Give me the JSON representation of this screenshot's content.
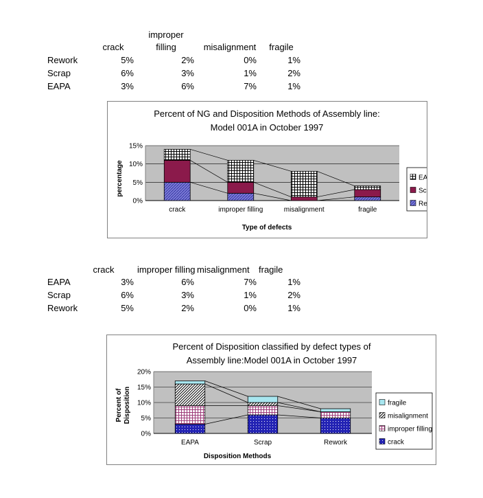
{
  "table1": {
    "headers": [
      "crack",
      "improper filling",
      "misalignment",
      "fragile"
    ],
    "header_improper_line1": "improper",
    "header_improper_line2": "filling",
    "rows": [
      {
        "label": "Rework",
        "values": [
          "5%",
          "2%",
          "0%",
          "1%"
        ]
      },
      {
        "label": "Scrap",
        "values": [
          "6%",
          "3%",
          "1%",
          "2%"
        ]
      },
      {
        "label": "EAPA",
        "values": [
          "3%",
          "6%",
          "7%",
          "1%"
        ]
      }
    ]
  },
  "table2": {
    "headers": [
      "crack",
      "improper filling",
      "misalignment",
      "fragile"
    ],
    "rows": [
      {
        "label": "EAPA",
        "values": [
          "3%",
          "6%",
          "7%",
          "1%"
        ]
      },
      {
        "label": "Scrap",
        "values": [
          "6%",
          "3%",
          "1%",
          "2%"
        ]
      },
      {
        "label": "Rework",
        "values": [
          "5%",
          "2%",
          "0%",
          "1%"
        ]
      }
    ]
  },
  "chart_data": [
    {
      "type": "bar",
      "stacked": true,
      "title_line1": "Percent of NG and Disposition Methods of Assembly line:",
      "title_line2": "Model 001A in October 1997",
      "xlabel": "Type of defects",
      "ylabel": "percentage",
      "categories": [
        "crack",
        "improper filling",
        "misalignment",
        "fragile"
      ],
      "yticks": [
        "15%",
        "10%",
        "5%",
        "0%"
      ],
      "ylim": [
        0,
        15
      ],
      "series": [
        {
          "name": "Rework",
          "values": [
            5,
            2,
            0,
            1
          ],
          "color": "#7b7bd6",
          "pattern": "hatch"
        },
        {
          "name": "Scrap",
          "values": [
            6,
            3,
            1,
            2
          ],
          "color": "#8b1a4b",
          "pattern": "solid"
        },
        {
          "name": "EAPA",
          "values": [
            3,
            6,
            7,
            1
          ],
          "color": "#000000",
          "pattern": "grid"
        }
      ],
      "legend": "right",
      "series_lines": true
    },
    {
      "type": "bar",
      "stacked": true,
      "title_line1": "Percent of Disposition classified by defect types of",
      "title_line2": "Assembly line:Model 001A in October 1997",
      "xlabel": "Disposition Methods",
      "ylabel_line1": "Percent of",
      "ylabel_line2": "Disposition",
      "categories": [
        "EAPA",
        "Scrap",
        "Rework"
      ],
      "yticks": [
        "20%",
        "15%",
        "10%",
        "5%",
        "0%"
      ],
      "ylim": [
        0,
        20
      ],
      "series": [
        {
          "name": "crack",
          "values": [
            3,
            6,
            5
          ],
          "color": "#2323b4",
          "pattern": "dots"
        },
        {
          "name": "improper filling",
          "values": [
            6,
            3,
            2
          ],
          "color": "#9c3a78",
          "pattern": "grid"
        },
        {
          "name": "misalignment",
          "values": [
            7,
            1,
            0
          ],
          "color": "#000000",
          "pattern": "diag"
        },
        {
          "name": "fragile",
          "values": [
            1,
            2,
            1
          ],
          "color": "#a8e6ef",
          "pattern": "solid"
        }
      ],
      "legend": "right",
      "series_lines": true
    }
  ]
}
